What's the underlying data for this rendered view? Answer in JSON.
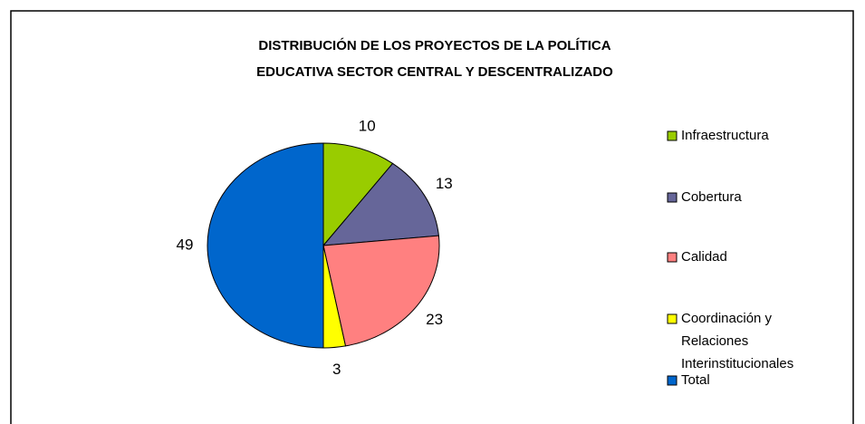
{
  "chart_data": {
    "type": "pie",
    "title": [
      "DISTRIBUCIÓN DE LOS PROYECTOS DE LA POLÍTICA",
      "EDUCATIVA SECTOR CENTRAL Y DESCENTRALIZADO"
    ],
    "categories": [
      "Infraestructura",
      "Cobertura",
      "Calidad",
      "Coordinación y Relaciones Interinstitucionales",
      "Total"
    ],
    "values": [
      10,
      13,
      23,
      3,
      49
    ],
    "colors": [
      "#99cc00",
      "#666699",
      "#ff8080",
      "#ffff00",
      "#0066cc"
    ],
    "legend": "right"
  }
}
